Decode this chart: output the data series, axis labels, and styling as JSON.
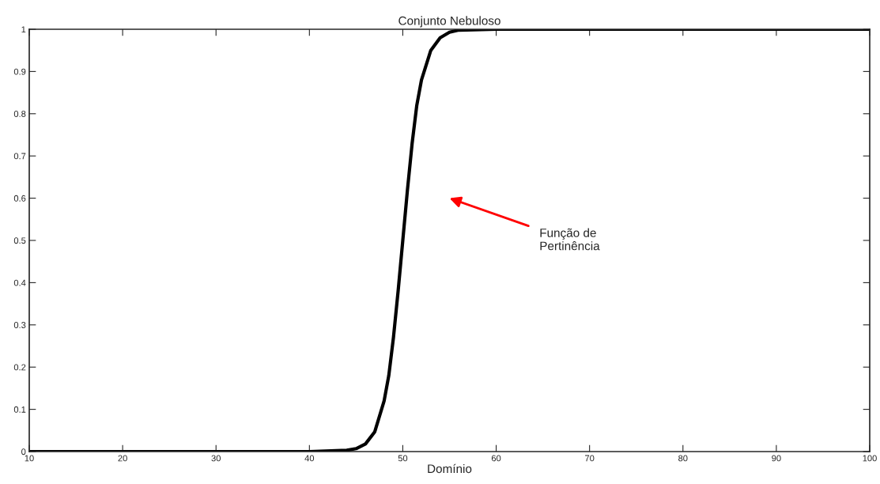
{
  "chart_data": {
    "type": "line",
    "title": "Conjunto Nebuloso",
    "xlabel": "Domínio",
    "x": [
      10,
      40,
      44,
      45,
      46,
      47,
      48,
      48.5,
      49,
      49.5,
      50,
      50.5,
      51,
      51.5,
      52,
      53,
      54,
      55,
      56,
      60,
      100
    ],
    "series": [
      {
        "color": "#000000",
        "values": [
          0,
          0,
          0.003,
          0.007,
          0.018,
          0.047,
          0.12,
          0.18,
          0.27,
          0.38,
          0.5,
          0.62,
          0.73,
          0.82,
          0.88,
          0.95,
          0.98,
          0.993,
          0.998,
          1,
          1
        ]
      }
    ],
    "xlim": [
      10,
      100
    ],
    "xticks": [
      10,
      20,
      30,
      40,
      50,
      60,
      70,
      80,
      90,
      100
    ],
    "ylim": [
      0,
      1
    ],
    "yticks": [
      0,
      0.1,
      0.2,
      0.3,
      0.4,
      0.5,
      0.6,
      0.7,
      0.8,
      0.9,
      1
    ],
    "grid": false,
    "legend": false,
    "marker": "none",
    "line_style": "solid",
    "annotations": [
      "Função de\nPertinência"
    ]
  }
}
